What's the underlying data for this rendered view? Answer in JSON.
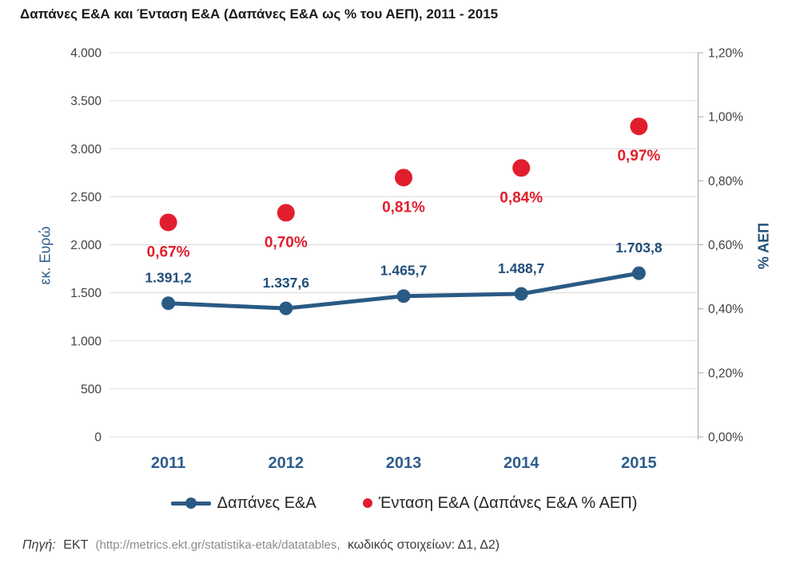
{
  "title": "Δαπάνες Ε&Α και Ένταση Ε&Α (Δαπάνες Ε&Α ως % του ΑΕΠ), 2011 - 2015",
  "chart_data": {
    "type": "line",
    "title": "Δαπάνες Ε&Α και Ένταση Ε&Α (Δαπάνες Ε&Α ως % του ΑΕΠ), 2011 - 2015",
    "categories": [
      "2011",
      "2012",
      "2013",
      "2014",
      "2015"
    ],
    "series": [
      {
        "name": "Δαπάνες Ε&Α",
        "type": "line",
        "yaxis": "left",
        "color": "#2A5A84",
        "values": [
          1391.2,
          1337.6,
          1465.7,
          1488.7,
          1703.8
        ],
        "point_labels": [
          "1.391,2",
          "1.337,6",
          "1.465,7",
          "1.488,7",
          "1.703,8"
        ],
        "label_color": "#1F4E79"
      },
      {
        "name": "Ένταση Ε&Α (Δαπάνες Ε&Α % ΑΕΠ)",
        "type": "scatter",
        "yaxis": "right",
        "color": "#E11E2D",
        "values": [
          0.67,
          0.7,
          0.81,
          0.84,
          0.97
        ],
        "point_labels": [
          "0,67%",
          "0,70%",
          "0,81%",
          "0,84%",
          "0,97%"
        ],
        "label_color": "#E11E2D"
      }
    ],
    "left_axis": {
      "title": "εκ. Ευρώ",
      "min": 0,
      "max": 4000,
      "step": 500,
      "tick_labels": [
        "0",
        "500",
        "1.000",
        "1.500",
        "2.000",
        "2.500",
        "3.000",
        "3.500",
        "4.000"
      ],
      "title_color": "#2E5D8C",
      "tick_color": "#404040"
    },
    "right_axis": {
      "title": "% ΑΕΠ",
      "min": 0,
      "max": 1.2,
      "step": 0.2,
      "tick_labels": [
        "0,00%",
        "0,20%",
        "0,40%",
        "0,60%",
        "0,80%",
        "1,00%",
        "1,20%"
      ],
      "title_color": "#1F4E79",
      "tick_color": "#404040"
    },
    "x_axis": {
      "label_color": "#2E5D8C"
    },
    "grid": "horizontal",
    "gridline_color": "#D9D9D9",
    "axis_line_color": "#A6A6A6",
    "legend_position": "bottom"
  },
  "legend": {
    "items": [
      {
        "label": "Δαπάνες Ε&Α",
        "marker": "line-dot-icon",
        "color": "#2A5A84"
      },
      {
        "label": "Ένταση Ε&Α (Δαπάνες Ε&Α % ΑΕΠ)",
        "marker": "dot-icon",
        "color": "#E11E2D"
      }
    ]
  },
  "source": {
    "prefix": "Πηγή:",
    "org": "ΕΚΤ",
    "url_part": "(http://metrics.ekt.gr/statistika-etak/datatables,",
    "codes_part": "κωδικός στοιχείων: Δ1, Δ2)"
  }
}
